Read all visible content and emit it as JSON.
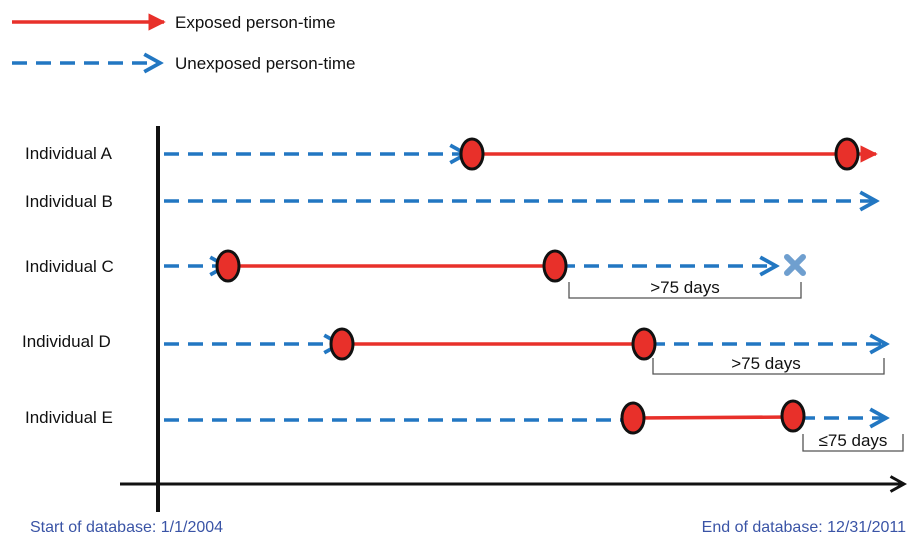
{
  "legend": {
    "exposed_label": "Exposed person-time",
    "unexposed_label": "Unexposed person-time"
  },
  "individuals": [
    {
      "label": "Individual A"
    },
    {
      "label": "Individual B"
    },
    {
      "label": "Individual C"
    },
    {
      "label": "Individual D"
    },
    {
      "label": "Individual E"
    }
  ],
  "brackets": [
    {
      "label": ">75 days"
    },
    {
      "label": ">75 days"
    },
    {
      "label": "≤75 days"
    }
  ],
  "axis": {
    "start_label": "Start of database: 1/1/2004",
    "end_label": "End of database: 12/31/2011"
  },
  "colors": {
    "exposed": "#e8302a",
    "unexposed": "#2277c2",
    "axis": "#111111",
    "db_text": "#3a54a6",
    "x_marker": "#6f9fcf"
  }
}
